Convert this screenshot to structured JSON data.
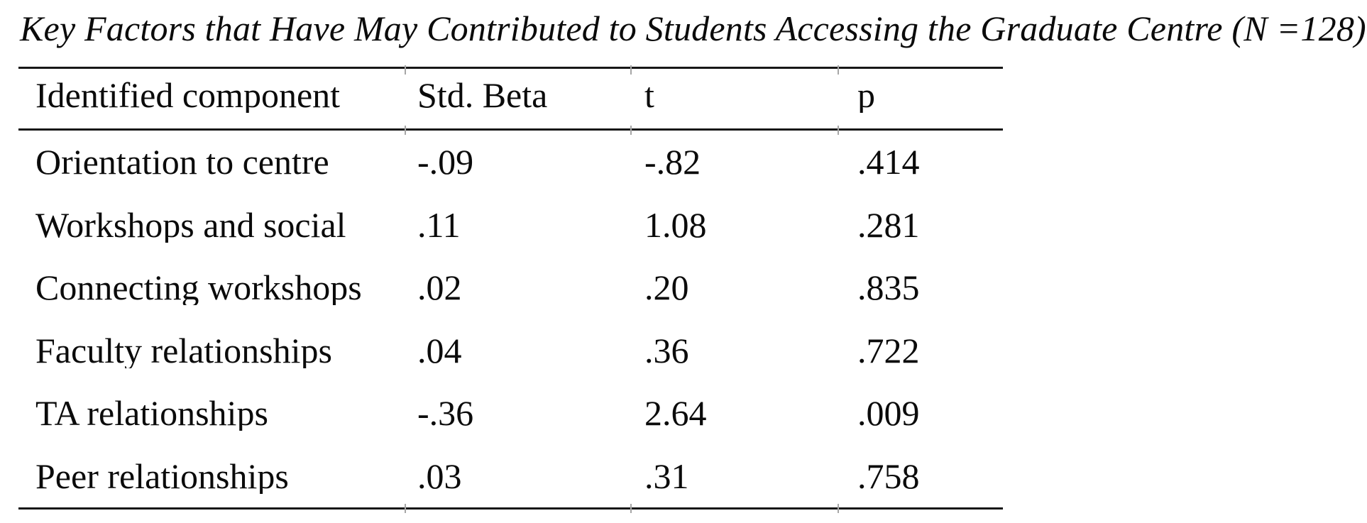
{
  "caption": "Key Factors that Have May Contributed to Students Accessing the Graduate Centre (N =128)",
  "table": {
    "headers": {
      "component": "Identified component",
      "std_beta": "Std. Beta",
      "t": "t",
      "p": "p"
    },
    "rows": [
      {
        "component": "Orientation to centre",
        "std_beta": "-.09",
        "t": "-.82",
        "p": ".414"
      },
      {
        "component": "Workshops and social",
        "std_beta": ".11",
        "t": "1.08",
        "p": ".281"
      },
      {
        "component": "Connecting workshops",
        "std_beta": ".02",
        "t": ".20",
        "p": ".835"
      },
      {
        "component": "Faculty relationships",
        "std_beta": ".04",
        "t": ".36",
        "p": ".722"
      },
      {
        "component": "TA relationships",
        "std_beta": "-.36",
        "t": "2.64",
        "p": ".009"
      },
      {
        "component": "Peer relationships",
        "std_beta": ".03",
        "t": ".31",
        "p": ".758"
      }
    ],
    "sample_size": "128"
  },
  "colors": {
    "background": "#ffffff",
    "text": "#0b0b0b",
    "rule": "#171717"
  }
}
